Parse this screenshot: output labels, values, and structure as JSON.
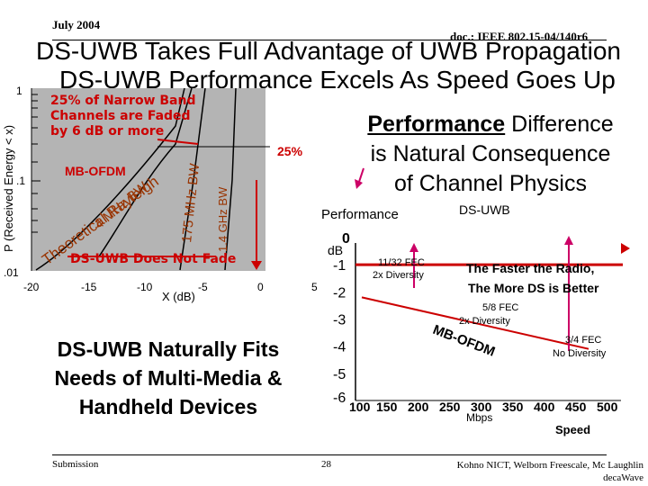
{
  "header": {
    "date": "July 2004",
    "doc": "doc.: IEEE 802.15-04/140r6"
  },
  "title": {
    "line1": "DS-UWB Takes Full Advantage of UWB Propagation",
    "line2": "DS-UWB Performance Excels As Speed Goes Up"
  },
  "left_chart": {
    "ylabel": "P (Received Energy < x)",
    "xlabel": "X (dB)",
    "y_ticks": [
      "1",
      ".1",
      ".01"
    ],
    "x_ticks": [
      "-20",
      "-15",
      "-10",
      "-5",
      "0",
      "5"
    ],
    "curve_labels": {
      "theoretical": "Theoretical Rayleigh",
      "bw4": "4 MHz BW",
      "bw175": "175 MHz BW",
      "bw14": "1.4 GHz BW",
      "mbofdm": "MB-OFDM",
      "pct25": "25%"
    },
    "annotations": {
      "narrow_band": [
        "25% of Narrow Band",
        "Channels are Faded",
        "by 6 dB or more"
      ],
      "ds_uwb_fade": "DS-UWB Does Not Fade"
    }
  },
  "perf_text": {
    "bold": "Performance",
    "rest1": " Difference",
    "line2": "is Natural Consequence",
    "line3": "of Channel Physics"
  },
  "fits_text": [
    "DS-UWB Naturally Fits",
    "Needs of Multi-Media &",
    "Handheld Devices"
  ],
  "right_chart": {
    "title": "Performance",
    "ds_uwb_label": "DS-UWB",
    "unit": "dB",
    "y_ticks": [
      "0",
      "-1",
      "-2",
      "-3",
      "-4",
      "-5",
      "-6"
    ],
    "x_ticks": [
      "100",
      "150",
      "200",
      "250",
      "300",
      "350",
      "400",
      "450",
      "500"
    ],
    "x_unit": "Mbps",
    "speed_label": "Speed",
    "mbofdm_label": "MB-OFDM",
    "fec_labels": {
      "fec1132": [
        "11/32 FEC",
        "2x Diversity"
      ],
      "fec58": [
        "5/8 FEC",
        "2x Diversity"
      ],
      "fec34": [
        "3/4 FEC",
        "No Diversity"
      ]
    },
    "faster_text": [
      "The Faster the Radio,",
      "The More DS is Better"
    ]
  },
  "chart_data": {
    "type": "line",
    "title": "Performance",
    "xlabel": "Mbps",
    "ylabel": "dB",
    "xlim": [
      100,
      500
    ],
    "ylim": [
      -6,
      0
    ],
    "series": [
      {
        "name": "DS-UWB",
        "x": [
          100,
          500
        ],
        "y": [
          -1.0,
          -1.0
        ]
      },
      {
        "name": "MB-OFDM",
        "x": [
          110,
          470
        ],
        "y": [
          -2.2,
          -4.1
        ]
      }
    ]
  },
  "footer": {
    "submission": "Submission",
    "page": "28",
    "authors": [
      "Kohno NICT, Welborn Freescale, Mc Laughlin",
      "decaWave"
    ]
  },
  "colors": {
    "ds_line": "#cc0000",
    "arrow": "#cc0066",
    "chart_bg": "#b4b4b4",
    "annotation_red": "#cc0000"
  }
}
